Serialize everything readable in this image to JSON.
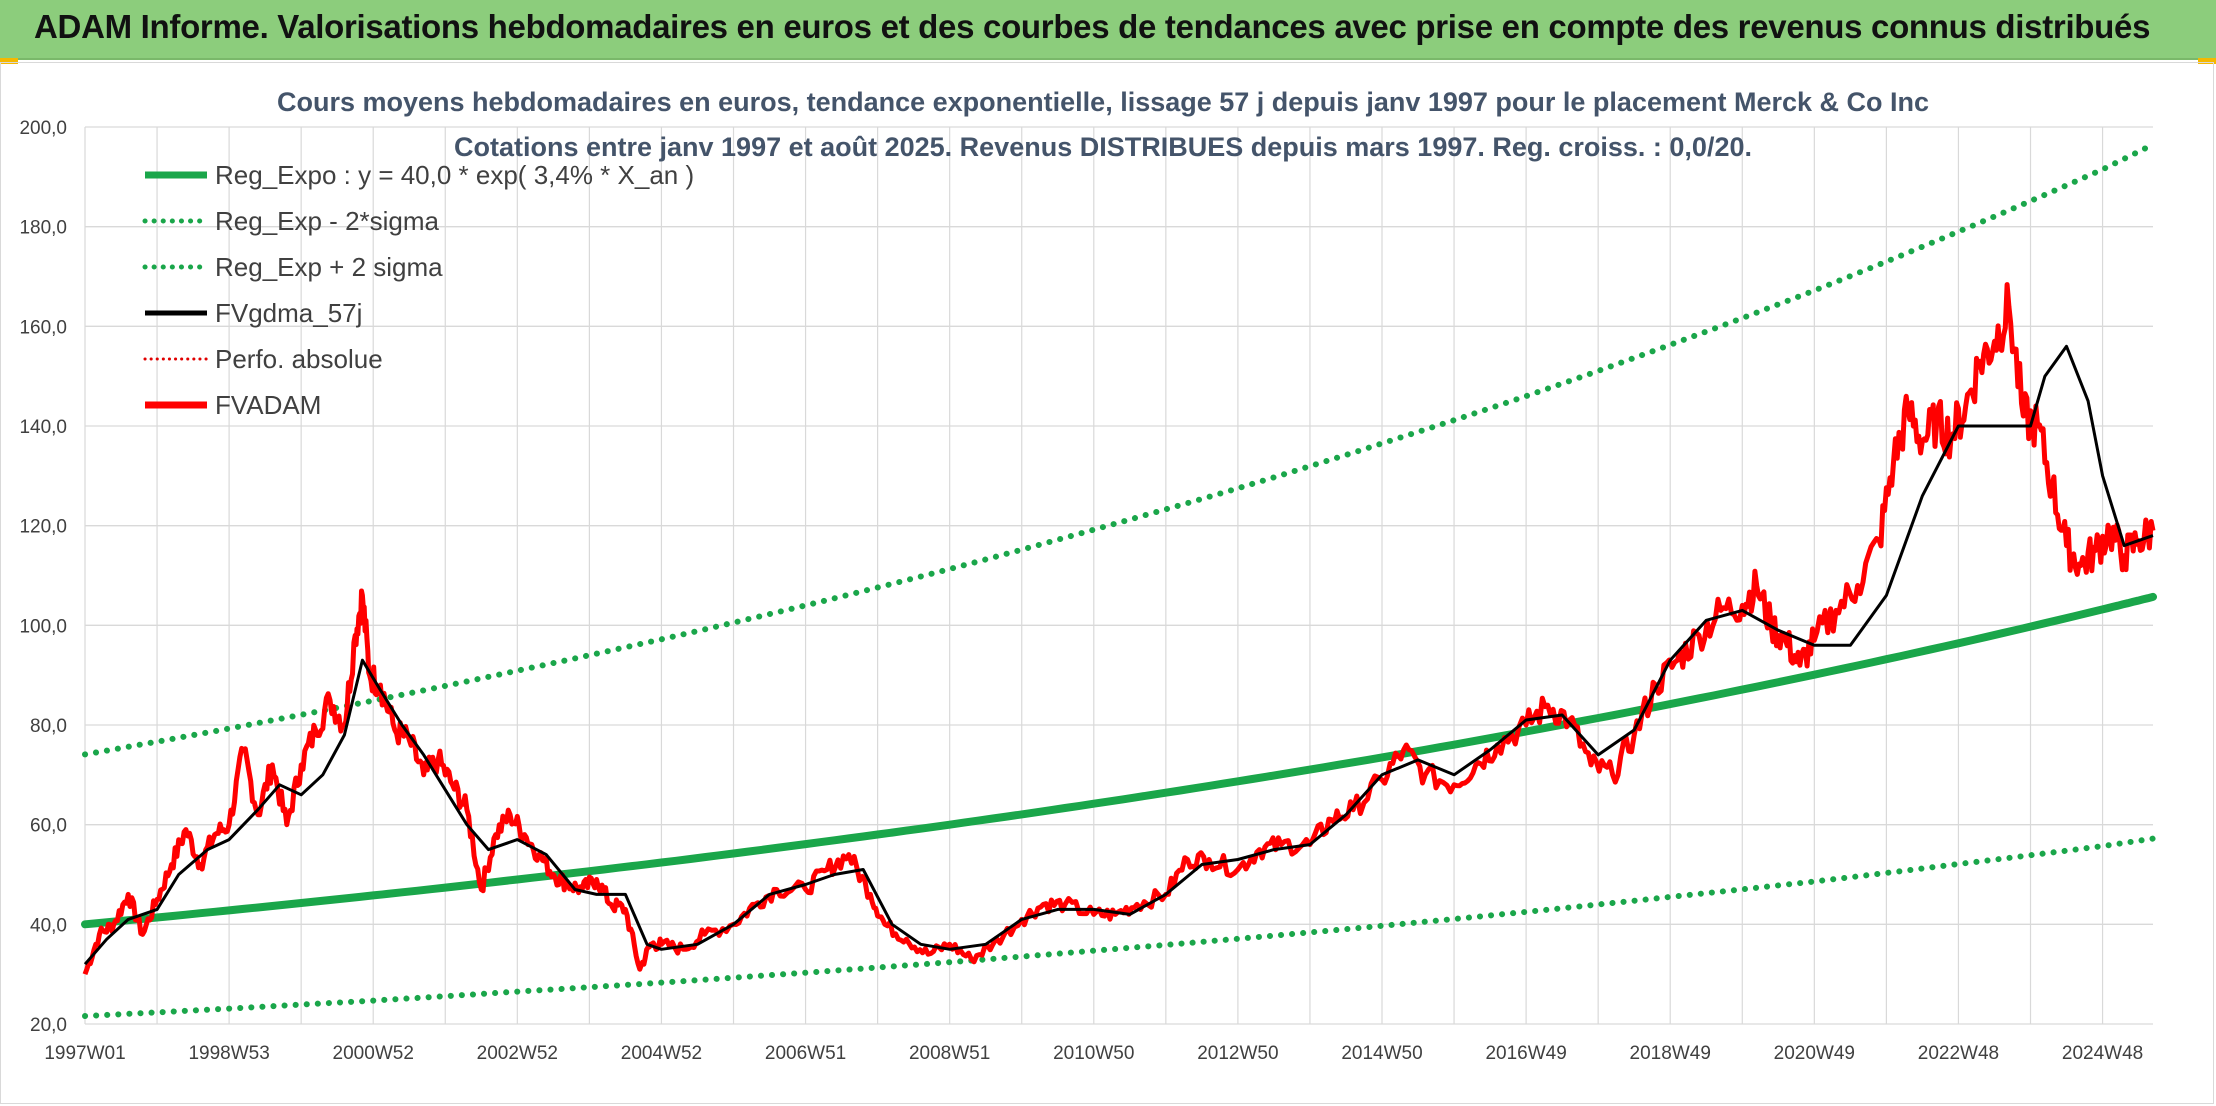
{
  "banner": {
    "title": "ADAM Informe. Valorisations hebdomadaires en euros et des courbes de tendances avec prise en compte des revenus connus distribués"
  },
  "colors": {
    "banner_bg": "#8ccd7c",
    "reg_expo": "#1aa64a",
    "sigma": "#1aa64a",
    "fvgdma": "#000000",
    "perfo": "#e00000",
    "fvadam": "#ff0000",
    "grid": "#d9d9d9"
  },
  "chart_data": {
    "type": "line",
    "title_line1": "Cours moyens hebdomadaires en euros, tendance exponentielle, lissage 57 j depuis janv 1997 pour le placement Merck & Co Inc",
    "title_line2": "Cotations entre janv 1997 et août 2025. Revenus DISTRIBUES depuis mars 1997. Reg. croiss. : 0,0/20.",
    "ylim": [
      20,
      200
    ],
    "y_ticks": [
      "20,0",
      "40,0",
      "60,0",
      "80,0",
      "100,0",
      "120,0",
      "140,0",
      "160,0",
      "180,0",
      "200,0"
    ],
    "y_tick_values": [
      20,
      40,
      60,
      80,
      100,
      120,
      140,
      160,
      180,
      200
    ],
    "x_range_years": [
      1997.0,
      2025.7
    ],
    "x_ticks": [
      "1997W01",
      "1998W53",
      "2000W52",
      "2002W52",
      "2004W52",
      "2006W51",
      "2008W51",
      "2010W50",
      "2012W50",
      "2014W50",
      "2016W49",
      "2018W49",
      "2020W49",
      "2022W48",
      "2024W48"
    ],
    "x_tick_years": [
      1997.0,
      1999.0,
      2001.0,
      2003.0,
      2005.0,
      2007.0,
      2009.0,
      2011.0,
      2013.0,
      2015.0,
      2017.0,
      2019.0,
      2021.0,
      2023.0,
      2025.0
    ],
    "grid": true,
    "legend_position": "top-left",
    "legend": [
      {
        "label": "Reg_Expo : y = 40,0 * exp( 3,4% *  X_an )",
        "style": "solid-thick",
        "color": "#1aa64a"
      },
      {
        "label": "Reg_Exp - 2*sigma",
        "style": "dotted",
        "color": "#1aa64a"
      },
      {
        "label": "Reg_Exp + 2 sigma",
        "style": "dotted",
        "color": "#1aa64a"
      },
      {
        "label": "FVgdma_57j",
        "style": "solid",
        "color": "#000000"
      },
      {
        "label": "Perfo. absolue",
        "style": "dotted-thin",
        "color": "#e00000"
      },
      {
        "label": "FVADAM",
        "style": "solid-thick",
        "color": "#ff0000"
      }
    ],
    "series": [
      {
        "name": "Reg_Expo : y = 40,0 * exp( 3,4% *  X_an )",
        "x": [
          1997.0,
          1999.0,
          2001.0,
          2003.0,
          2005.0,
          2007.0,
          2009.0,
          2011.0,
          2013.0,
          2015.0,
          2017.0,
          2019.0,
          2021.0,
          2023.0,
          2025.0,
          2025.7
        ],
        "values": [
          40.0,
          42.8,
          45.8,
          49.0,
          52.4,
          56.1,
          60.0,
          64.2,
          68.7,
          73.5,
          78.7,
          84.2,
          90.1,
          96.4,
          103.2,
          105.7
        ]
      },
      {
        "name": "Reg_Exp - 2*sigma",
        "x": [
          1997.0,
          1999.0,
          2001.0,
          2003.0,
          2005.0,
          2007.0,
          2009.0,
          2011.0,
          2013.0,
          2015.0,
          2017.0,
          2019.0,
          2021.0,
          2023.0,
          2025.0,
          2025.7
        ],
        "values": [
          21.6,
          23.1,
          24.7,
          26.5,
          28.3,
          30.3,
          32.4,
          34.7,
          37.1,
          39.7,
          42.5,
          45.5,
          48.6,
          52.1,
          55.7,
          57.2
        ]
      },
      {
        "name": "Reg_Exp + 2 sigma",
        "x": [
          1997.0,
          1999.0,
          2001.0,
          2003.0,
          2005.0,
          2007.0,
          2009.0,
          2011.0,
          2013.0,
          2015.0,
          2017.0,
          2019.0,
          2021.0,
          2023.0,
          2025.0,
          2025.7
        ],
        "values": [
          74.1,
          79.3,
          84.9,
          90.9,
          97.2,
          104.0,
          111.3,
          119.2,
          127.5,
          136.5,
          146.0,
          156.3,
          167.2,
          179.0,
          191.5,
          196.5
        ]
      },
      {
        "name": "FVgdma_57j",
        "x": [
          1997.0,
          1997.3,
          1997.6,
          1998.0,
          1998.3,
          1998.7,
          1999.0,
          1999.4,
          1999.7,
          2000.0,
          2000.3,
          2000.6,
          2000.85,
          2001.1,
          2001.4,
          2001.7,
          2002.0,
          2002.3,
          2002.6,
          2003.0,
          2003.4,
          2003.8,
          2004.1,
          2004.5,
          2004.8,
          2005.0,
          2005.5,
          2006.0,
          2006.5,
          2007.0,
          2007.4,
          2007.8,
          2008.2,
          2008.6,
          2009.0,
          2009.5,
          2010.0,
          2010.5,
          2011.0,
          2011.5,
          2012.0,
          2012.5,
          2013.0,
          2013.5,
          2014.0,
          2014.5,
          2015.0,
          2015.5,
          2016.0,
          2016.5,
          2017.0,
          2017.5,
          2018.0,
          2018.5,
          2019.0,
          2019.5,
          2020.0,
          2020.5,
          2021.0,
          2021.5,
          2022.0,
          2022.5,
          2023.0,
          2023.5,
          2024.0,
          2024.2,
          2024.5,
          2024.8,
          2025.0,
          2025.3,
          2025.7
        ],
        "values": [
          32,
          37,
          41,
          43,
          50,
          55,
          57,
          63,
          68,
          66,
          70,
          78,
          93,
          87,
          80,
          74,
          67,
          60,
          55,
          57,
          54,
          47,
          46,
          46,
          36,
          35,
          36,
          40,
          46,
          48,
          50,
          51,
          40,
          36,
          35,
          36,
          41,
          43,
          43,
          42,
          46,
          52,
          53,
          55,
          56,
          62,
          70,
          73,
          70,
          75,
          81,
          82,
          74,
          79,
          93,
          101,
          103,
          99,
          96,
          96,
          106,
          126,
          140,
          140,
          140,
          150,
          156,
          145,
          130,
          116,
          118
        ]
      },
      {
        "name": "FVADAM",
        "x": [
          1997.0,
          1997.2,
          1997.4,
          1997.6,
          1997.8,
          1998.0,
          1998.2,
          1998.4,
          1998.6,
          1998.8,
          1999.0,
          1999.2,
          1999.4,
          1999.6,
          1999.8,
          2000.0,
          2000.2,
          2000.4,
          2000.6,
          2000.75,
          2000.85,
          2000.95,
          2001.1,
          2001.3,
          2001.5,
          2001.7,
          2001.9,
          2002.1,
          2002.3,
          2002.5,
          2002.7,
          2002.9,
          2003.1,
          2003.3,
          2003.5,
          2003.7,
          2003.9,
          2004.1,
          2004.3,
          2004.5,
          2004.7,
          2004.85,
          2005.0,
          2005.3,
          2005.6,
          2006.0,
          2006.3,
          2006.6,
          2007.0,
          2007.3,
          2007.6,
          2007.9,
          2008.1,
          2008.4,
          2008.7,
          2009.0,
          2009.3,
          2009.6,
          2010.0,
          2010.3,
          2010.6,
          2011.0,
          2011.3,
          2011.6,
          2012.0,
          2012.3,
          2012.6,
          2013.0,
          2013.3,
          2013.6,
          2014.0,
          2014.3,
          2014.6,
          2015.0,
          2015.3,
          2015.6,
          2016.0,
          2016.3,
          2016.6,
          2017.0,
          2017.3,
          2017.6,
          2017.9,
          2018.2,
          2018.5,
          2018.8,
          2019.1,
          2019.4,
          2019.7,
          2020.0,
          2020.2,
          2020.4,
          2020.6,
          2020.8,
          2021.0,
          2021.3,
          2021.6,
          2021.9,
          2022.1,
          2022.3,
          2022.5,
          2022.7,
          2022.9,
          2023.1,
          2023.3,
          2023.5,
          2023.7,
          2023.9,
          2024.1,
          2024.3,
          2024.5,
          2024.7,
          2024.9,
          2025.1,
          2025.3,
          2025.5,
          2025.7
        ],
        "values": [
          30,
          38,
          40,
          46,
          38,
          45,
          52,
          59,
          52,
          58,
          60,
          75,
          62,
          72,
          60,
          72,
          79,
          85,
          80,
          98,
          106,
          90,
          88,
          79,
          77,
          70,
          73,
          68,
          63,
          47,
          58,
          62,
          58,
          54,
          50,
          48,
          47,
          49,
          44,
          43,
          31,
          36,
          36,
          35,
          38,
          40,
          44,
          47,
          47,
          51,
          54,
          46,
          40,
          37,
          34,
          36,
          33,
          36,
          41,
          44,
          44,
          42,
          42,
          44,
          46,
          53,
          53,
          51,
          55,
          56,
          56,
          61,
          63,
          69,
          75,
          70,
          68,
          72,
          76,
          80,
          84,
          81,
          72,
          70,
          78,
          88,
          93,
          98,
          103,
          104,
          108,
          100,
          97,
          92,
          97,
          103,
          108,
          117,
          133,
          143,
          137,
          141,
          138,
          144,
          153,
          157,
          164,
          142,
          140,
          128,
          116,
          112,
          115,
          119,
          114,
          117,
          119
        ]
      }
    ]
  }
}
